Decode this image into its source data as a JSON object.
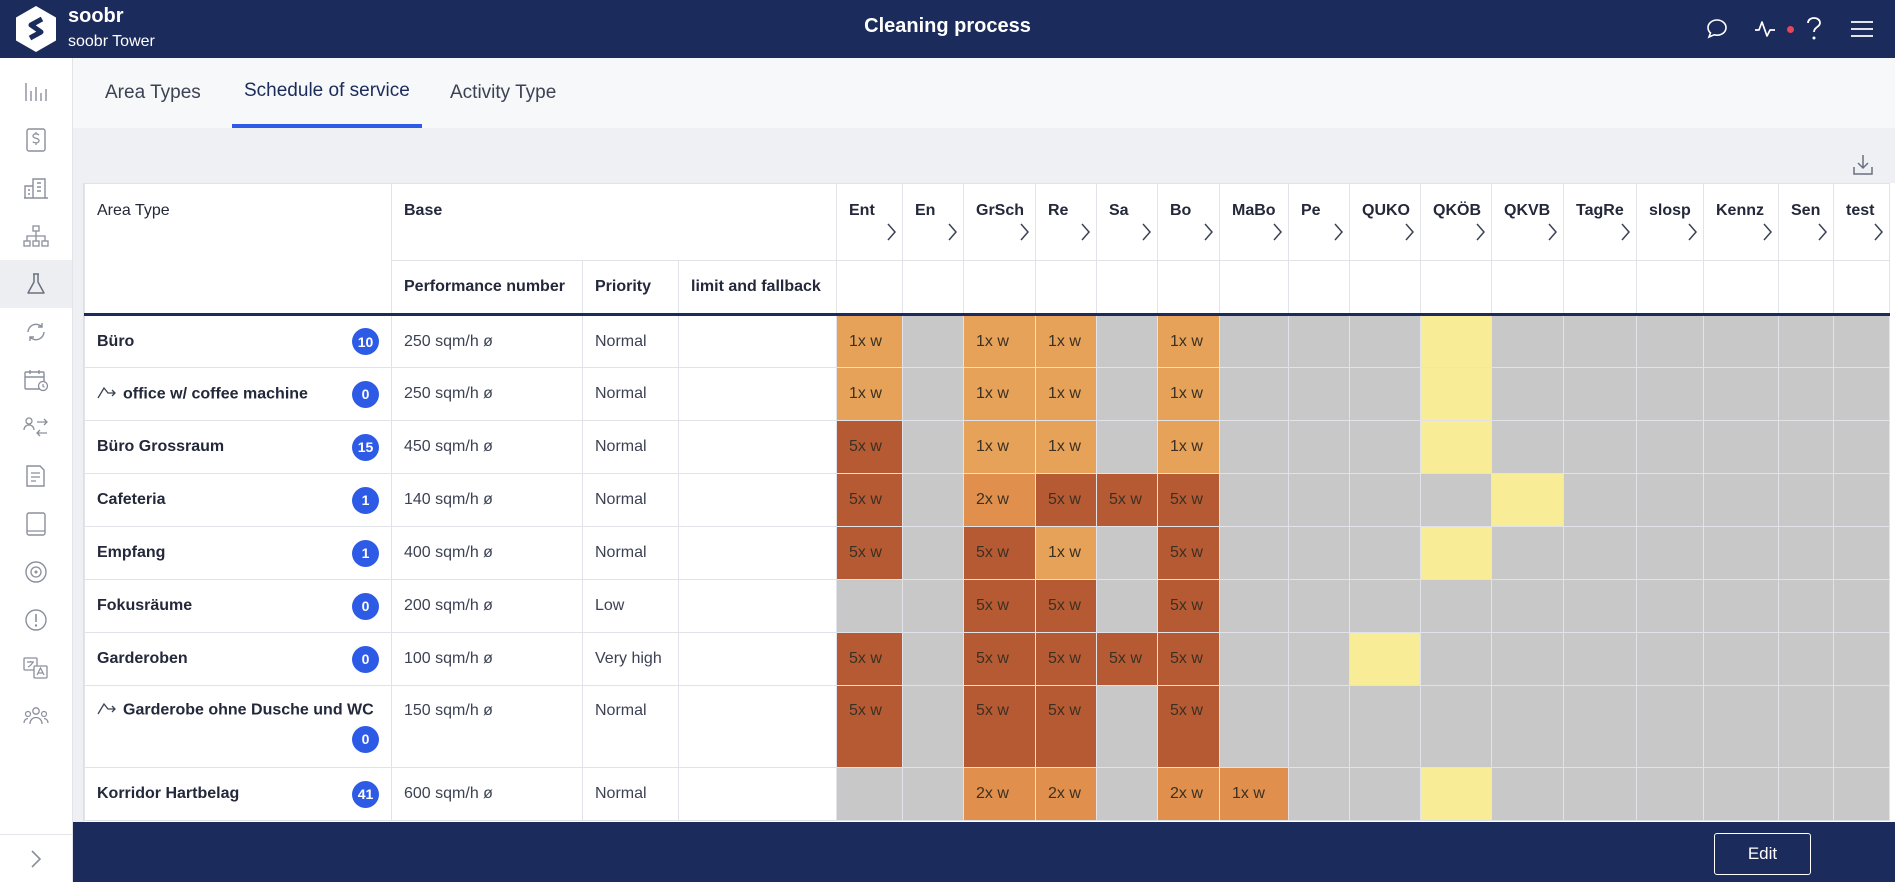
{
  "app": {
    "brand_name": "soobr",
    "building": "soobr Tower",
    "page_title": "Cleaning process"
  },
  "tabs": [
    {
      "label": "Area Types",
      "active": false
    },
    {
      "label": "Schedule of service",
      "active": true
    },
    {
      "label": "Activity Type",
      "active": false
    }
  ],
  "table": {
    "area_type_header": "Area Type",
    "base_header": "Base",
    "sub_headers": [
      "Performance number",
      "Priority",
      "limit and fallback"
    ],
    "activity_columns": [
      "Ent",
      "En",
      "GrSch",
      "Re",
      "Sa",
      "Bo",
      "MaBo",
      "Pe",
      "QUKO",
      "QKÖB",
      "QKVB",
      "TagRe",
      "slosp",
      "Kennz",
      "Sen",
      "test"
    ],
    "rows": [
      {
        "name": "Büro",
        "sub": false,
        "count": "10",
        "performance": "250 sqm/h ø",
        "priority": "Normal",
        "limit": "",
        "cells": [
          {
            "t": "1x w",
            "c": "light"
          },
          {
            "t": "",
            "c": "none"
          },
          {
            "t": "1x w",
            "c": "light"
          },
          {
            "t": "1x w",
            "c": "light"
          },
          {
            "t": "",
            "c": "none"
          },
          {
            "t": "1x w",
            "c": "light"
          },
          {
            "t": "",
            "c": "none"
          },
          {
            "t": "",
            "c": "none"
          },
          {
            "t": "",
            "c": "none"
          },
          {
            "t": "",
            "c": "yellow"
          },
          {
            "t": "",
            "c": "none"
          },
          {
            "t": "",
            "c": "none"
          },
          {
            "t": "",
            "c": "none"
          },
          {
            "t": "",
            "c": "none"
          },
          {
            "t": "",
            "c": "none"
          },
          {
            "t": "",
            "c": "none"
          }
        ]
      },
      {
        "name": "office w/ coffee machine",
        "sub": true,
        "count": "0",
        "performance": "250 sqm/h ø",
        "priority": "Normal",
        "limit": "",
        "cells": [
          {
            "t": "1x w",
            "c": "light"
          },
          {
            "t": "",
            "c": "none"
          },
          {
            "t": "1x w",
            "c": "light"
          },
          {
            "t": "1x w",
            "c": "light"
          },
          {
            "t": "",
            "c": "none"
          },
          {
            "t": "1x w",
            "c": "light"
          },
          {
            "t": "",
            "c": "none"
          },
          {
            "t": "",
            "c": "none"
          },
          {
            "t": "",
            "c": "none"
          },
          {
            "t": "",
            "c": "yellow"
          },
          {
            "t": "",
            "c": "none"
          },
          {
            "t": "",
            "c": "none"
          },
          {
            "t": "",
            "c": "none"
          },
          {
            "t": "",
            "c": "none"
          },
          {
            "t": "",
            "c": "none"
          },
          {
            "t": "",
            "c": "none"
          }
        ]
      },
      {
        "name": "Büro Grossraum",
        "sub": false,
        "count": "15",
        "performance": "450 sqm/h ø",
        "priority": "Normal",
        "limit": "",
        "cells": [
          {
            "t": "5x w",
            "c": "dark"
          },
          {
            "t": "",
            "c": "none"
          },
          {
            "t": "1x w",
            "c": "light"
          },
          {
            "t": "1x w",
            "c": "light"
          },
          {
            "t": "",
            "c": "none"
          },
          {
            "t": "1x w",
            "c": "light"
          },
          {
            "t": "",
            "c": "none"
          },
          {
            "t": "",
            "c": "none"
          },
          {
            "t": "",
            "c": "none"
          },
          {
            "t": "",
            "c": "yellow"
          },
          {
            "t": "",
            "c": "none"
          },
          {
            "t": "",
            "c": "none"
          },
          {
            "t": "",
            "c": "none"
          },
          {
            "t": "",
            "c": "none"
          },
          {
            "t": "",
            "c": "none"
          },
          {
            "t": "",
            "c": "none"
          }
        ]
      },
      {
        "name": "Cafeteria",
        "sub": false,
        "count": "1",
        "performance": "140 sqm/h ø",
        "priority": "Normal",
        "limit": "",
        "cells": [
          {
            "t": "5x w",
            "c": "dark"
          },
          {
            "t": "",
            "c": "none"
          },
          {
            "t": "2x w",
            "c": "mid"
          },
          {
            "t": "5x w",
            "c": "dark"
          },
          {
            "t": "5x w",
            "c": "dark"
          },
          {
            "t": "5x w",
            "c": "dark"
          },
          {
            "t": "",
            "c": "none"
          },
          {
            "t": "",
            "c": "none"
          },
          {
            "t": "",
            "c": "none"
          },
          {
            "t": "",
            "c": "none"
          },
          {
            "t": "",
            "c": "yellow"
          },
          {
            "t": "",
            "c": "none"
          },
          {
            "t": "",
            "c": "none"
          },
          {
            "t": "",
            "c": "none"
          },
          {
            "t": "",
            "c": "none"
          },
          {
            "t": "",
            "c": "none"
          }
        ]
      },
      {
        "name": "Empfang",
        "sub": false,
        "count": "1",
        "performance": "400 sqm/h ø",
        "priority": "Normal",
        "limit": "",
        "cells": [
          {
            "t": "5x w",
            "c": "dark"
          },
          {
            "t": "",
            "c": "none"
          },
          {
            "t": "5x w",
            "c": "dark"
          },
          {
            "t": "1x w",
            "c": "light"
          },
          {
            "t": "",
            "c": "none"
          },
          {
            "t": "5x w",
            "c": "dark"
          },
          {
            "t": "",
            "c": "none"
          },
          {
            "t": "",
            "c": "none"
          },
          {
            "t": "",
            "c": "none"
          },
          {
            "t": "",
            "c": "yellow"
          },
          {
            "t": "",
            "c": "none"
          },
          {
            "t": "",
            "c": "none"
          },
          {
            "t": "",
            "c": "none"
          },
          {
            "t": "",
            "c": "none"
          },
          {
            "t": "",
            "c": "none"
          },
          {
            "t": "",
            "c": "none"
          }
        ]
      },
      {
        "name": "Fokusräume",
        "sub": false,
        "count": "0",
        "performance": "200 sqm/h ø",
        "priority": "Low",
        "limit": "",
        "cells": [
          {
            "t": "",
            "c": "none"
          },
          {
            "t": "",
            "c": "none"
          },
          {
            "t": "5x w",
            "c": "dark"
          },
          {
            "t": "5x w",
            "c": "dark"
          },
          {
            "t": "",
            "c": "none"
          },
          {
            "t": "5x w",
            "c": "dark"
          },
          {
            "t": "",
            "c": "none"
          },
          {
            "t": "",
            "c": "none"
          },
          {
            "t": "",
            "c": "none"
          },
          {
            "t": "",
            "c": "none"
          },
          {
            "t": "",
            "c": "none"
          },
          {
            "t": "",
            "c": "none"
          },
          {
            "t": "",
            "c": "none"
          },
          {
            "t": "",
            "c": "none"
          },
          {
            "t": "",
            "c": "none"
          },
          {
            "t": "",
            "c": "none"
          }
        ]
      },
      {
        "name": "Garderoben",
        "sub": false,
        "count": "0",
        "performance": "100 sqm/h ø",
        "priority": "Very high",
        "limit": "",
        "cells": [
          {
            "t": "5x w",
            "c": "dark"
          },
          {
            "t": "",
            "c": "none"
          },
          {
            "t": "5x w",
            "c": "dark"
          },
          {
            "t": "5x w",
            "c": "dark"
          },
          {
            "t": "5x w",
            "c": "dark"
          },
          {
            "t": "5x w",
            "c": "dark"
          },
          {
            "t": "",
            "c": "none"
          },
          {
            "t": "",
            "c": "none"
          },
          {
            "t": "",
            "c": "yellow"
          },
          {
            "t": "",
            "c": "none"
          },
          {
            "t": "",
            "c": "none"
          },
          {
            "t": "",
            "c": "none"
          },
          {
            "t": "",
            "c": "none"
          },
          {
            "t": "",
            "c": "none"
          },
          {
            "t": "",
            "c": "none"
          },
          {
            "t": "",
            "c": "none"
          }
        ]
      },
      {
        "name": "Garderobe ohne Dusche und WC",
        "sub": true,
        "count": "0",
        "performance": "150 sqm/h ø",
        "priority": "Normal",
        "limit": "",
        "tall": true,
        "cells": [
          {
            "t": "5x w",
            "c": "dark"
          },
          {
            "t": "",
            "c": "none"
          },
          {
            "t": "5x w",
            "c": "dark"
          },
          {
            "t": "5x w",
            "c": "dark"
          },
          {
            "t": "",
            "c": "none"
          },
          {
            "t": "5x w",
            "c": "dark"
          },
          {
            "t": "",
            "c": "none"
          },
          {
            "t": "",
            "c": "none"
          },
          {
            "t": "",
            "c": "none"
          },
          {
            "t": "",
            "c": "none"
          },
          {
            "t": "",
            "c": "none"
          },
          {
            "t": "",
            "c": "none"
          },
          {
            "t": "",
            "c": "none"
          },
          {
            "t": "",
            "c": "none"
          },
          {
            "t": "",
            "c": "none"
          },
          {
            "t": "",
            "c": "none"
          }
        ]
      },
      {
        "name": "Korridor Hartbelag",
        "sub": false,
        "count": "41",
        "performance": "600 sqm/h ø",
        "priority": "Normal",
        "limit": "",
        "cells": [
          {
            "t": "",
            "c": "none"
          },
          {
            "t": "",
            "c": "none"
          },
          {
            "t": "2x w",
            "c": "mid"
          },
          {
            "t": "2x w",
            "c": "mid"
          },
          {
            "t": "",
            "c": "none"
          },
          {
            "t": "2x w",
            "c": "mid"
          },
          {
            "t": "1x w",
            "c": "mid"
          },
          {
            "t": "",
            "c": "none"
          },
          {
            "t": "",
            "c": "none"
          },
          {
            "t": "",
            "c": "yellow"
          },
          {
            "t": "",
            "c": "none"
          },
          {
            "t": "",
            "c": "none"
          },
          {
            "t": "",
            "c": "none"
          },
          {
            "t": "",
            "c": "none"
          },
          {
            "t": "",
            "c": "none"
          },
          {
            "t": "",
            "c": "none"
          }
        ]
      }
    ]
  },
  "footer": {
    "edit_label": "Edit"
  },
  "colors": {
    "navy": "#1b2b5b",
    "accent_blue": "#2e5be6",
    "cell_none": "#c8c8c8",
    "cell_light": "#e6a259",
    "cell_mid": "#e0904c",
    "cell_dark": "#b65a34",
    "cell_yellow": "#f8ec96"
  },
  "icons": {
    "topbar": [
      "chat-icon",
      "activity-icon",
      "help-icon",
      "menu-icon"
    ],
    "sidebar": [
      "analytics-icon",
      "dollar-icon",
      "buildings-icon",
      "hierarchy-icon",
      "flask-icon",
      "cycle-icon",
      "calendar-icon",
      "transfer-icon",
      "report-icon",
      "tablet-icon",
      "sensor-icon",
      "alert-icon",
      "translate-icon",
      "team-icon"
    ]
  }
}
